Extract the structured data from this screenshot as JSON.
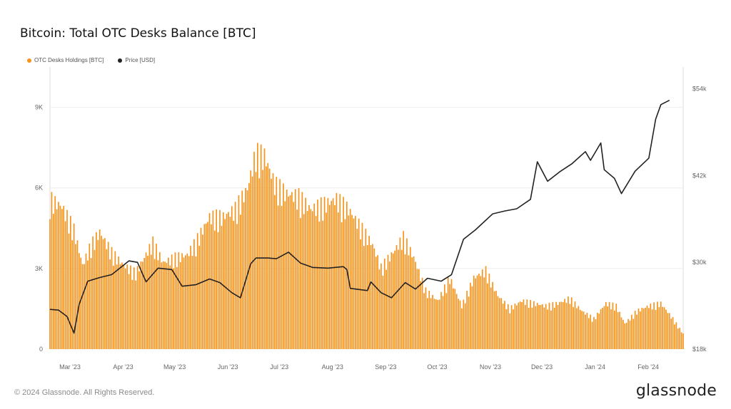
{
  "header": {
    "title": "Bitcoin: Total OTC Desks Balance [BTC]"
  },
  "legend": [
    {
      "label": "OTC Desks Holdings [BTC]",
      "color": "#f7931a"
    },
    {
      "label": "Price [USD]",
      "color": "#222222"
    }
  ],
  "footer": {
    "copyright": "© 2024 Glassnode. All Rights Reserved.",
    "brand": "glassnode"
  },
  "chart_data": {
    "type": "bar",
    "title": "Bitcoin: Total OTC Desks Balance [BTC]",
    "x_range": [
      "2023-02-24",
      "2024-02-28"
    ],
    "x_ticks": [
      "Mar '23",
      "Apr '23",
      "May '23",
      "Jun '23",
      "Jul '23",
      "Aug '23",
      "Sep '23",
      "Oct '23",
      "Nov '23",
      "Dec '23",
      "Jan '24",
      "Feb '24"
    ],
    "y_left": {
      "ticks": [
        "0",
        "3K",
        "6K",
        "9K"
      ],
      "tick_values": [
        0,
        3000,
        6000,
        9000
      ],
      "range": [
        0,
        10500
      ]
    },
    "y_right": {
      "ticks": [
        "$18k",
        "$30k",
        "$42k",
        "$54k"
      ],
      "tick_values": [
        18000,
        30000,
        42000,
        54000
      ],
      "range": [
        18000,
        57000
      ]
    },
    "grid": true,
    "legend_position": "top-left",
    "series": [
      {
        "name": "OTC Desks Holdings [BTC]",
        "type": "bar",
        "axis": "left",
        "color": "#f7931a",
        "points": [
          [
            "2023-02-24",
            5900
          ],
          [
            "2023-03-03",
            5600
          ],
          [
            "2023-03-10",
            4700
          ],
          [
            "2023-03-15",
            3300
          ],
          [
            "2023-03-20",
            4100
          ],
          [
            "2023-03-25",
            4600
          ],
          [
            "2023-04-01",
            3800
          ],
          [
            "2023-04-08",
            3300
          ],
          [
            "2023-04-15",
            3000
          ],
          [
            "2023-04-20",
            3600
          ],
          [
            "2023-04-25",
            4200
          ],
          [
            "2023-05-01",
            3400
          ],
          [
            "2023-05-08",
            3600
          ],
          [
            "2023-05-15",
            3700
          ],
          [
            "2023-05-20",
            4200
          ],
          [
            "2023-05-28",
            5200
          ],
          [
            "2023-06-05",
            5200
          ],
          [
            "2023-06-12",
            5500
          ],
          [
            "2023-06-19",
            6300
          ],
          [
            "2023-06-24",
            7700
          ],
          [
            "2023-06-29",
            7600
          ],
          [
            "2023-07-05",
            6500
          ],
          [
            "2023-07-12",
            6100
          ],
          [
            "2023-07-19",
            6000
          ],
          [
            "2023-07-26",
            5500
          ],
          [
            "2023-08-03",
            5700
          ],
          [
            "2023-08-10",
            5900
          ],
          [
            "2023-08-17",
            5500
          ],
          [
            "2023-08-24",
            4800
          ],
          [
            "2023-08-31",
            4100
          ],
          [
            "2023-09-05",
            3200
          ],
          [
            "2023-09-12",
            3800
          ],
          [
            "2023-09-18",
            4400
          ],
          [
            "2023-09-24",
            3600
          ],
          [
            "2023-10-01",
            2300
          ],
          [
            "2023-10-08",
            1900
          ],
          [
            "2023-10-15",
            2800
          ],
          [
            "2023-10-22",
            1700
          ],
          [
            "2023-10-29",
            2800
          ],
          [
            "2023-11-05",
            3100
          ],
          [
            "2023-11-12",
            2100
          ],
          [
            "2023-11-19",
            1600
          ],
          [
            "2023-11-26",
            1900
          ],
          [
            "2023-12-03",
            1800
          ],
          [
            "2023-12-10",
            1700
          ],
          [
            "2023-12-17",
            1800
          ],
          [
            "2023-12-24",
            2000
          ],
          [
            "2023-12-31",
            1500
          ],
          [
            "2024-01-07",
            1200
          ],
          [
            "2024-01-14",
            1800
          ],
          [
            "2024-01-20",
            1700
          ],
          [
            "2024-01-25",
            1000
          ],
          [
            "2024-02-01",
            1500
          ],
          [
            "2024-02-08",
            1700
          ],
          [
            "2024-02-15",
            1800
          ],
          [
            "2024-02-22",
            1200
          ],
          [
            "2024-02-28",
            600
          ]
        ]
      },
      {
        "name": "Price [USD]",
        "type": "line",
        "axis": "right",
        "color": "#222222",
        "points": [
          [
            "2023-02-24",
            23500
          ],
          [
            "2023-03-01",
            23400
          ],
          [
            "2023-03-06",
            22500
          ],
          [
            "2023-03-10",
            20200
          ],
          [
            "2023-03-13",
            24200
          ],
          [
            "2023-03-18",
            27400
          ],
          [
            "2023-03-25",
            27900
          ],
          [
            "2023-04-01",
            28300
          ],
          [
            "2023-04-11",
            30200
          ],
          [
            "2023-04-16",
            30000
          ],
          [
            "2023-04-21",
            27300
          ],
          [
            "2023-04-28",
            29200
          ],
          [
            "2023-05-06",
            29000
          ],
          [
            "2023-05-12",
            26700
          ],
          [
            "2023-05-20",
            26900
          ],
          [
            "2023-05-28",
            27700
          ],
          [
            "2023-06-03",
            27200
          ],
          [
            "2023-06-10",
            25800
          ],
          [
            "2023-06-15",
            25100
          ],
          [
            "2023-06-21",
            29800
          ],
          [
            "2023-06-24",
            30600
          ],
          [
            "2023-07-01",
            30600
          ],
          [
            "2023-07-06",
            30500
          ],
          [
            "2023-07-13",
            31400
          ],
          [
            "2023-07-20",
            29900
          ],
          [
            "2023-07-27",
            29300
          ],
          [
            "2023-08-05",
            29200
          ],
          [
            "2023-08-14",
            29400
          ],
          [
            "2023-08-16",
            29000
          ],
          [
            "2023-08-18",
            26400
          ],
          [
            "2023-08-28",
            26100
          ],
          [
            "2023-08-30",
            27300
          ],
          [
            "2023-09-05",
            25800
          ],
          [
            "2023-09-11",
            25100
          ],
          [
            "2023-09-19",
            27200
          ],
          [
            "2023-09-25",
            26300
          ],
          [
            "2023-10-02",
            27800
          ],
          [
            "2023-10-10",
            27400
          ],
          [
            "2023-10-16",
            28300
          ],
          [
            "2023-10-23",
            33200
          ],
          [
            "2023-10-30",
            34500
          ],
          [
            "2023-11-09",
            36700
          ],
          [
            "2023-11-16",
            37100
          ],
          [
            "2023-11-23",
            37400
          ],
          [
            "2023-12-01",
            38700
          ],
          [
            "2023-12-05",
            43900
          ],
          [
            "2023-12-11",
            41200
          ],
          [
            "2023-12-18",
            42500
          ],
          [
            "2023-12-25",
            43600
          ],
          [
            "2024-01-02",
            45300
          ],
          [
            "2024-01-05",
            44100
          ],
          [
            "2024-01-11",
            46500
          ],
          [
            "2024-01-13",
            42800
          ],
          [
            "2024-01-19",
            41600
          ],
          [
            "2024-01-23",
            39500
          ],
          [
            "2024-01-31",
            42600
          ],
          [
            "2024-02-08",
            44400
          ],
          [
            "2024-02-12",
            49800
          ],
          [
            "2024-02-15",
            51800
          ],
          [
            "2024-02-20",
            52400
          ]
        ]
      }
    ]
  }
}
